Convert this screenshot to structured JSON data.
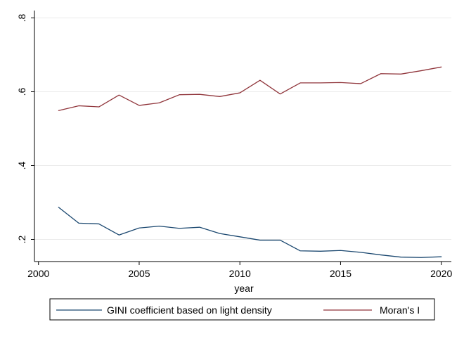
{
  "chart_data": {
    "type": "line",
    "title": "",
    "xlabel": "year",
    "ylabel": "",
    "xlim": [
      1999.8,
      2020.5
    ],
    "ylim": [
      0.14,
      0.82
    ],
    "x_ticks": [
      2000,
      2005,
      2010,
      2015,
      2020
    ],
    "x_tick_labels": [
      "2000",
      "2005",
      "2010",
      "2015",
      "2020"
    ],
    "y_ticks": [
      0.2,
      0.4,
      0.6,
      0.8
    ],
    "y_tick_labels": [
      ".2",
      ".4",
      ".6",
      ".8"
    ],
    "grid": "horizontal",
    "legend_position": "bottom",
    "x": [
      2001,
      2002,
      2003,
      2004,
      2005,
      2006,
      2007,
      2008,
      2009,
      2010,
      2011,
      2012,
      2013,
      2014,
      2015,
      2016,
      2017,
      2018,
      2019,
      2020
    ],
    "series": [
      {
        "name": "GINI coefficient based on light density",
        "color": "#1a476f",
        "values": [
          0.287,
          0.244,
          0.242,
          0.212,
          0.231,
          0.236,
          0.23,
          0.233,
          0.216,
          0.207,
          0.198,
          0.198,
          0.169,
          0.168,
          0.17,
          0.165,
          0.158,
          0.152,
          0.151,
          0.153
        ]
      },
      {
        "name": "Moran's I",
        "color": "#90353b",
        "values": [
          0.549,
          0.562,
          0.559,
          0.591,
          0.563,
          0.57,
          0.592,
          0.593,
          0.587,
          0.597,
          0.631,
          0.594,
          0.624,
          0.624,
          0.625,
          0.622,
          0.649,
          0.648,
          0.657,
          0.667
        ]
      }
    ]
  }
}
